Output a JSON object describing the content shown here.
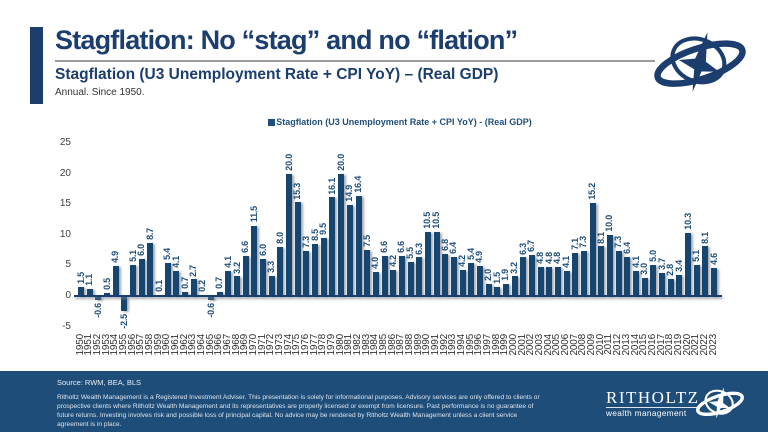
{
  "header": {
    "title": "Stagflation: No “stag” and no “flation”",
    "subtitle": "Stagflation (U3 Unemployment Rate + CPI YoY) – (Real GDP)",
    "subnote": "Annual. Since 1950."
  },
  "icons": {
    "top_logo": "gyroscope-compass-icon",
    "footer_logo": "gyroscope-compass-icon"
  },
  "colors": {
    "navy": "#1c3e6e",
    "bar": "#16456f",
    "label": "#1f4e79",
    "footer_bg": "#1d4d78",
    "rule_gray": "#9b9b9b"
  },
  "chart_data": {
    "type": "bar",
    "title": "Stagflation (U3 Unemployment Rate + CPI YoY) - (Real GDP)",
    "legend": "Stagflation (U3 Unemployment Rate + CPI YoY) - (Real GDP)",
    "legend_position": "top",
    "grid": false,
    "ylim": [
      -5,
      25
    ],
    "yticks": [
      25,
      20,
      15,
      10,
      5,
      0,
      -5
    ],
    "bar_color": "#16456f",
    "label_format": "one-decimal",
    "categories": [
      1950,
      1951,
      1952,
      1953,
      1954,
      1955,
      1956,
      1957,
      1958,
      1959,
      1960,
      1961,
      1962,
      1963,
      1964,
      1965,
      1966,
      1967,
      1968,
      1969,
      1970,
      1971,
      1972,
      1973,
      1974,
      1975,
      1976,
      1977,
      1978,
      1979,
      1980,
      1981,
      1982,
      1983,
      1984,
      1985,
      1986,
      1987,
      1988,
      1989,
      1990,
      1991,
      1992,
      1993,
      1994,
      1995,
      1996,
      1997,
      1998,
      1999,
      2000,
      2001,
      2002,
      2003,
      2004,
      2005,
      2006,
      2007,
      2008,
      2009,
      2010,
      2011,
      2012,
      2013,
      2014,
      2015,
      2016,
      2017,
      2018,
      2019,
      2020,
      2021,
      2022,
      2023
    ],
    "values": [
      1.5,
      1.1,
      -0.6,
      0.5,
      4.9,
      -2.5,
      5.1,
      6.0,
      8.7,
      0.1,
      5.4,
      4.1,
      0.7,
      2.7,
      0.2,
      -0.6,
      0.7,
      4.1,
      3.2,
      6.6,
      11.5,
      6.0,
      3.3,
      8.0,
      20.0,
      15.3,
      7.3,
      8.5,
      9.5,
      16.1,
      20.0,
      14.9,
      16.4,
      7.5,
      4.0,
      6.6,
      4.2,
      6.6,
      5.5,
      6.3,
      10.5,
      10.5,
      6.8,
      6.4,
      4.2,
      5.4,
      4.9,
      2.0,
      1.5,
      1.9,
      3.2,
      6.3,
      6.7,
      4.8,
      4.8,
      4.8,
      4.1,
      7.1,
      7.3,
      15.2,
      8.1,
      10.0,
      7.3,
      6.4,
      4.1,
      3.0,
      5.0,
      3.7,
      2.8,
      3.4,
      10.3,
      5.1,
      8.1,
      4.6
    ]
  },
  "footer": {
    "source": "Source: RWM, BEA, BLS",
    "disclaimer": "Ritholtz Wealth Management is a Registered Investment Adviser. This presentation is solely for informational purposes. Advisory services are only offered to clients or prospective clients where Ritholtz Wealth Management and its representatives are properly licensed or exempt from licensure. Past performance is no guarantee of future returns. Investing involves risk and possible loss of principal capital. No advice may be rendered by Ritholtz Wealth Management unless a client service agreement is in place.",
    "logo_name": "RITHOLTZ",
    "logo_subtext": "wealth management"
  }
}
